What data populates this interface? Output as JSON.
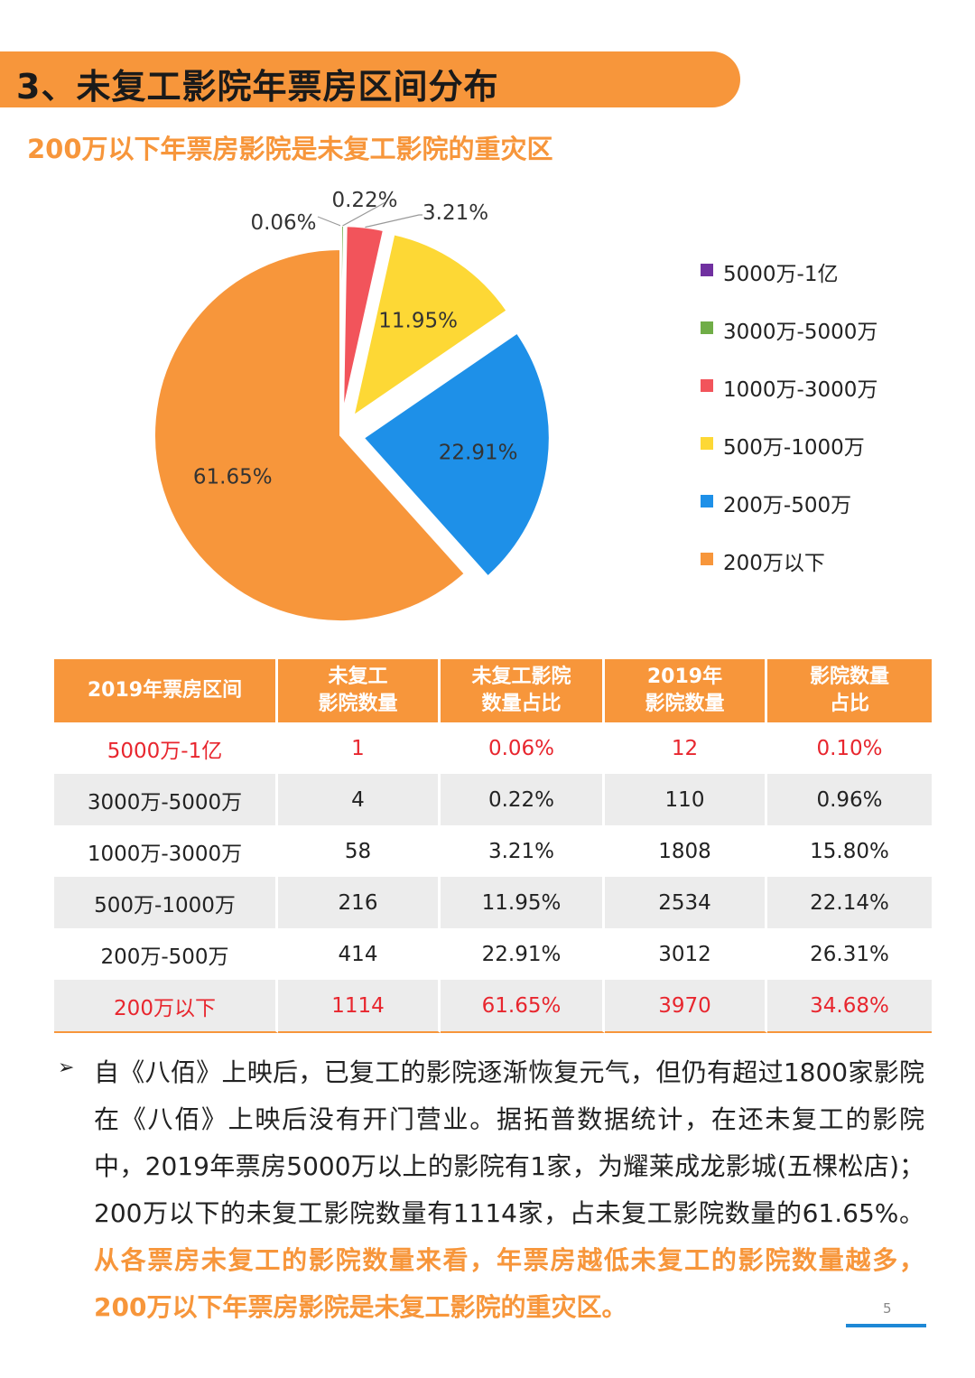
{
  "section": {
    "title": "3、未复工影院年票房区间分布"
  },
  "subtitle": "200万以下年票房影院是未复工影院的重灾区",
  "colors": {
    "accent": "#f7963b",
    "red_text": "#e8262e",
    "page_line": "#1e88d6"
  },
  "chart_data": {
    "type": "pie",
    "title": "",
    "categories": [
      "5000万-1亿",
      "3000万-5000万",
      "1000万-3000万",
      "500万-1000万",
      "200万-500万",
      "200万以下"
    ],
    "values": [
      0.06,
      0.22,
      3.21,
      11.95,
      22.91,
      61.65
    ],
    "labels": [
      "0.06%",
      "0.22%",
      "3.21%",
      "11.95%",
      "22.91%",
      "61.65%"
    ],
    "colors": [
      "#7030a0",
      "#70ad47",
      "#f2545b",
      "#fdd835",
      "#1e90e8",
      "#f7963b"
    ],
    "exploded": true,
    "legend_position": "right"
  },
  "table": {
    "headers": [
      [
        "2019年票房区间"
      ],
      [
        "未复工",
        "影院数量"
      ],
      [
        "未复工影院",
        "数量占比"
      ],
      [
        "2019年",
        "影院数量"
      ],
      [
        "影院数量",
        "占比"
      ]
    ],
    "rows": [
      [
        "5000万-1亿",
        "1",
        "0.06%",
        "12",
        "0.10%"
      ],
      [
        "3000万-5000万",
        "4",
        "0.22%",
        "110",
        "0.96%"
      ],
      [
        "1000万-3000万",
        "58",
        "3.21%",
        "1808",
        "15.80%"
      ],
      [
        "500万-1000万",
        "216",
        "11.95%",
        "2534",
        "22.14%"
      ],
      [
        "200万-500万",
        "414",
        "22.91%",
        "3012",
        "26.31%"
      ],
      [
        "200万以下",
        "1114",
        "61.65%",
        "3970",
        "34.68%"
      ]
    ]
  },
  "note": {
    "arrow": "➢",
    "text": "自《八佰》上映后，已复工的影院逐渐恢复元气，但仍有超过1800家影院在《八佰》上映后没有开门营业。据拓普数据统计，在还未复工的影院中，2019年票房5000万以上的影院有1家，为耀莱成龙影城(五棵松店)；200万以下的未复工影院数量有1114家，占未复工影院数量的61.65%。",
    "highlight": "从各票房未复工的影院数量来看，年票房越低未复工的影院数量越多，200万以下年票房影院是未复工影院的重灾区。"
  },
  "page_number": "5"
}
